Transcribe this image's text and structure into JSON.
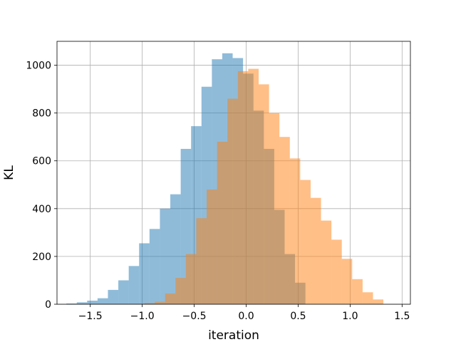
{
  "chart_data": {
    "type": "bar",
    "title": "",
    "xlabel": "iteration",
    "ylabel": "KL",
    "xlim": [
      -1.82,
      1.58
    ],
    "ylim": [
      0,
      1100
    ],
    "xticks": [
      -1.5,
      -1.0,
      -0.5,
      0.0,
      0.5,
      1.0,
      1.5
    ],
    "xtick_labels": [
      "−1.5",
      "−1.0",
      "−0.5",
      "0.0",
      "0.5",
      "1.0",
      "1.5"
    ],
    "yticks": [
      0,
      200,
      400,
      600,
      800,
      1000
    ],
    "ytick_labels": [
      "0",
      "200",
      "400",
      "600",
      "800",
      "1000"
    ],
    "grid": true,
    "legend": "none",
    "bar_alpha": 0.5,
    "series": [
      {
        "color": "#1f77b4",
        "bin_edges": [
          -1.73,
          -1.63,
          -1.53,
          -1.43,
          -1.33,
          -1.23,
          -1.13,
          -1.03,
          -0.93,
          -0.83,
          -0.73,
          -0.63,
          -0.53,
          -0.43,
          -0.33,
          -0.23,
          -0.13,
          -0.03,
          0.07,
          0.17,
          0.27,
          0.37,
          0.47,
          0.57
        ],
        "counts": [
          3,
          8,
          15,
          25,
          60,
          100,
          160,
          255,
          315,
          400,
          460,
          650,
          745,
          910,
          1025,
          1050,
          1030,
          965,
          810,
          650,
          395,
          210,
          90,
          20
        ]
      },
      {
        "color": "#ff7f0e",
        "bin_edges": [
          -0.98,
          -0.88,
          -0.78,
          -0.68,
          -0.58,
          -0.48,
          -0.38,
          -0.28,
          -0.18,
          -0.08,
          0.02,
          0.12,
          0.22,
          0.32,
          0.42,
          0.52,
          0.62,
          0.72,
          0.82,
          0.92,
          1.02,
          1.12,
          1.22,
          1.32
        ],
        "counts": [
          5,
          10,
          45,
          110,
          210,
          360,
          480,
          680,
          860,
          975,
          985,
          920,
          800,
          700,
          610,
          520,
          445,
          350,
          270,
          190,
          105,
          50,
          20,
          5
        ]
      }
    ]
  }
}
